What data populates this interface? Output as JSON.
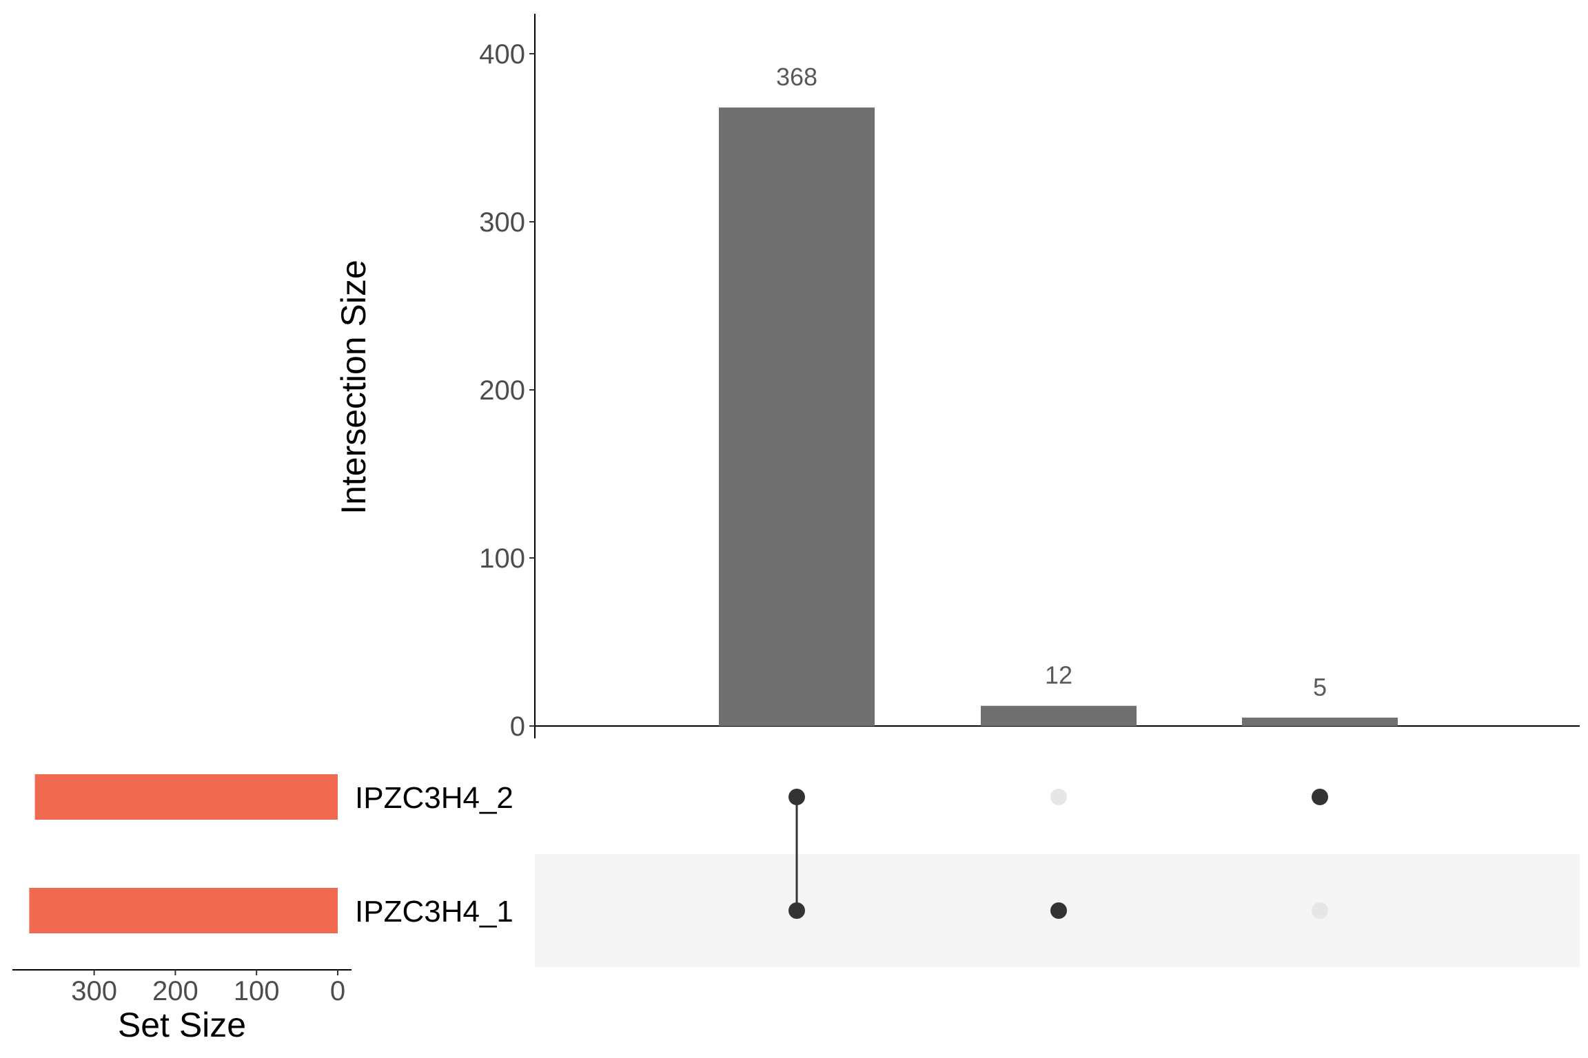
{
  "chart_data": {
    "type": "bar",
    "subtype": "upset",
    "intersections": {
      "ylabel": "Intersection Size",
      "ylim": [
        0,
        420
      ],
      "yticks": [
        0,
        100,
        200,
        300,
        400
      ],
      "bars": [
        {
          "value": 368,
          "label": "368",
          "members": [
            "IPZC3H4_2",
            "IPZC3H4_1"
          ]
        },
        {
          "value": 12,
          "label": "12",
          "members": [
            "IPZC3H4_1"
          ]
        },
        {
          "value": 5,
          "label": "5",
          "members": [
            "IPZC3H4_2"
          ]
        }
      ],
      "bar_color": "#707070"
    },
    "sets": {
      "xlabel": "Set Size",
      "xticks": [
        300,
        200,
        100,
        0
      ],
      "xlim": [
        0,
        400
      ],
      "names": [
        "IPZC3H4_2",
        "IPZC3H4_1"
      ],
      "values": [
        373,
        380
      ],
      "bar_color": "#EF6A51"
    },
    "matrix": {
      "active_color": "#333333",
      "inactive_color": "#e6e6e6",
      "stripe_color": "#f5f5f5"
    }
  }
}
